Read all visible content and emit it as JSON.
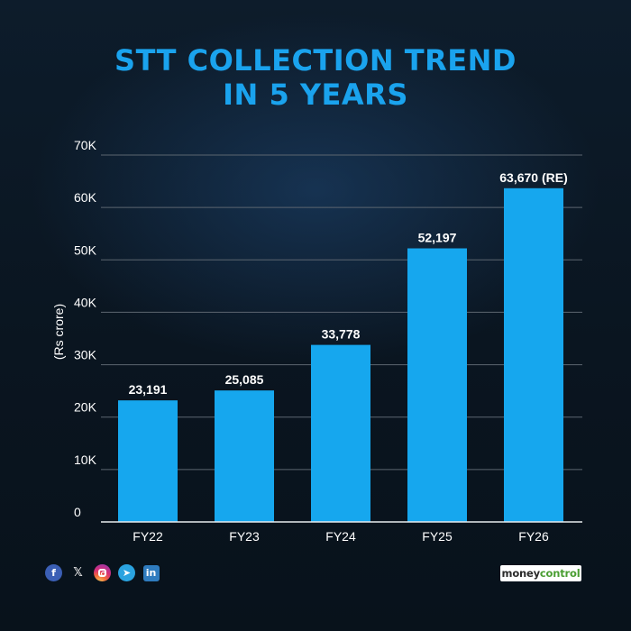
{
  "title": {
    "line1": "STT COLLECTION TREND",
    "line2": "IN 5 YEARS"
  },
  "chart_data": {
    "type": "bar",
    "categories": [
      "FY22",
      "FY23",
      "FY24",
      "FY25",
      "FY26"
    ],
    "values": [
      23191,
      25085,
      33778,
      52197,
      63670
    ],
    "value_labels": [
      "23,191",
      "25,085",
      "33,778",
      "52,197",
      "63,670 (RE)"
    ],
    "ylabel": "(Rs crore)",
    "ylim": [
      0,
      70000
    ],
    "yticks": [
      0,
      10000,
      20000,
      30000,
      40000,
      50000,
      60000,
      70000
    ],
    "ytick_labels": [
      "0",
      "10K",
      "20K",
      "30K",
      "40K",
      "50K",
      "60K",
      "70K"
    ],
    "grid": true,
    "bar_color": "#16a7ee",
    "grid_color": "#5c6670",
    "text_color": "#ffffff"
  },
  "footer": {
    "social_icons": [
      "facebook-icon",
      "x-icon",
      "instagram-icon",
      "telegram-icon",
      "linkedin-icon"
    ],
    "facebook_glyph": "f",
    "x_glyph": "𝕏",
    "telegram_glyph": "➤",
    "linkedin_glyph": "in",
    "brand_part1": "money",
    "brand_part2": "control"
  }
}
